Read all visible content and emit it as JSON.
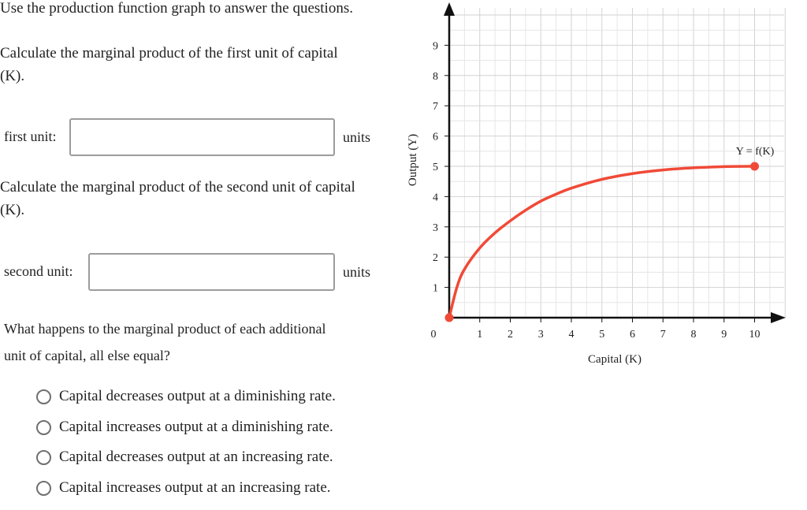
{
  "intro": "Use the production function graph to answer the questions.",
  "q1": {
    "text_line1": "Calculate the marginal product of the first unit of capital",
    "text_line2": "(K).",
    "field_label": "first unit:",
    "value": "",
    "unit": "units"
  },
  "q2": {
    "text_line1": "Calculate the marginal product of the second unit of capital",
    "text_line2": "(K).",
    "field_label": "second unit:",
    "value": "",
    "unit": "units"
  },
  "q3": {
    "text_line1": "What happens to the marginal product of each additional",
    "text_line2": "unit of capital, all else equal?",
    "options": [
      "Capital decreases output at a diminishing rate.",
      "Capital increases output at a diminishing rate.",
      "Capital decreases output at an increasing rate.",
      "Capital increases output at an increasing rate."
    ]
  },
  "chart_data": {
    "type": "line",
    "xlabel": "Capital (K)",
    "ylabel": "Output (Y)",
    "xlim": [
      0,
      10
    ],
    "ylim": [
      0,
      9
    ],
    "x_ticks": [
      1,
      2,
      3,
      4,
      5,
      6,
      7,
      8,
      9,
      10
    ],
    "y_ticks": [
      1,
      2,
      3,
      4,
      5,
      6,
      7,
      8,
      9
    ],
    "origin_label": "0",
    "grid": true,
    "series": [
      {
        "name": "Y = f(K)",
        "color": "#f04a37",
        "x": [
          0,
          0.25,
          0.5,
          1,
          1.5,
          2,
          2.5,
          3,
          3.5,
          4,
          5,
          6,
          7,
          8,
          9,
          10
        ],
        "y": [
          0,
          1.0,
          1.6,
          2.3,
          2.8,
          3.2,
          3.55,
          3.85,
          4.08,
          4.28,
          4.57,
          4.76,
          4.88,
          4.95,
          4.99,
          5.0
        ]
      }
    ]
  }
}
